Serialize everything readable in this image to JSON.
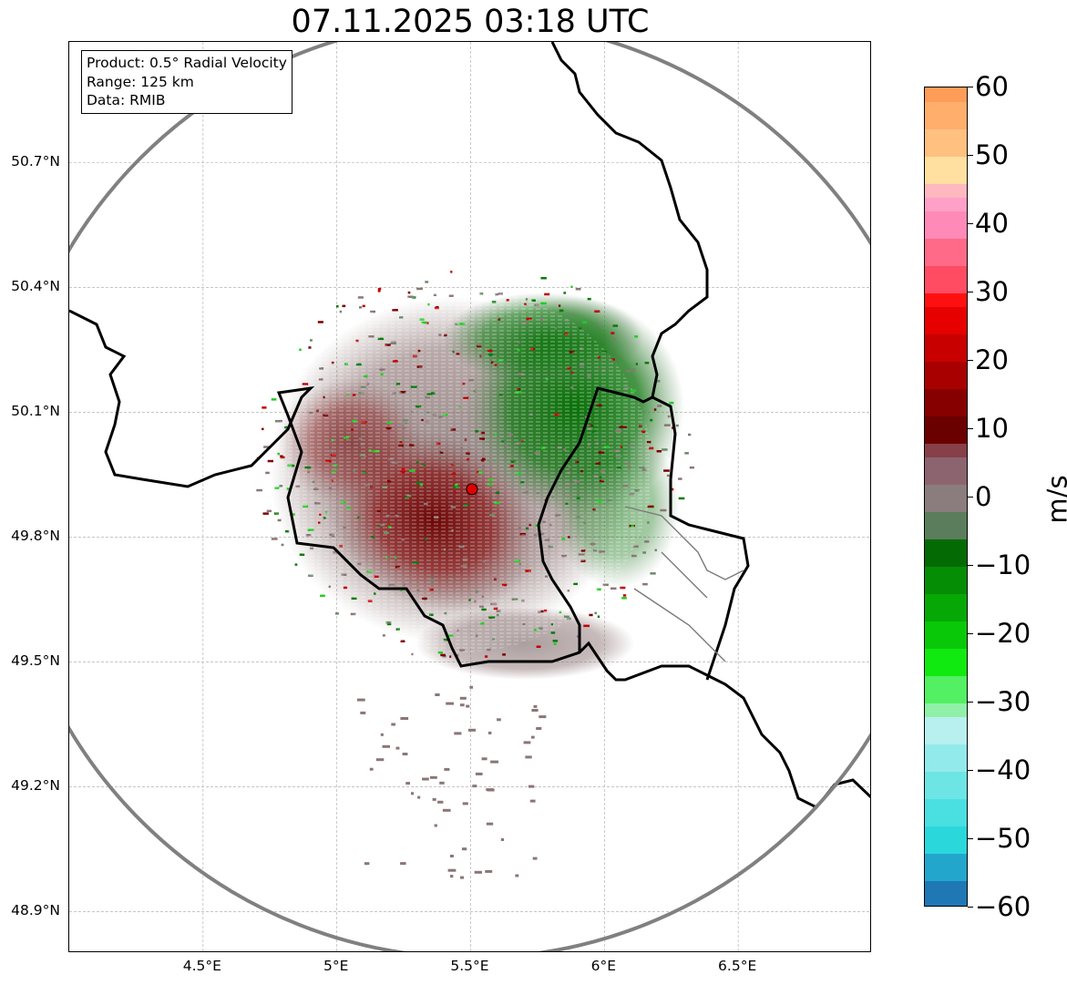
{
  "title": "07.11.2025 03:18 UTC",
  "info": {
    "product": "Product: 0.5° Radial Velocity",
    "range": "Range: 125 km",
    "data": "Data: RMIB"
  },
  "map": {
    "lon_range": [
      4.0,
      7.0
    ],
    "lat_range": [
      48.8,
      50.99
    ],
    "radar_site": {
      "lon": 5.505,
      "lat": 49.915
    },
    "range_ring_km": 125,
    "lat_ticks": [
      {
        "value": 50.7,
        "label": "50.7°N"
      },
      {
        "value": 50.4,
        "label": "50.4°N"
      },
      {
        "value": 50.1,
        "label": "50.1°N"
      },
      {
        "value": 49.8,
        "label": "49.8°N"
      },
      {
        "value": 49.5,
        "label": "49.5°N"
      },
      {
        "value": 49.2,
        "label": "49.2°N"
      },
      {
        "value": 48.9,
        "label": "48.9°N"
      }
    ],
    "lon_ticks": [
      {
        "value": 4.5,
        "label": "4.5°E"
      },
      {
        "value": 5.0,
        "label": "5°E"
      },
      {
        "value": 5.5,
        "label": "5.5°E"
      },
      {
        "value": 6.0,
        "label": "6°E"
      },
      {
        "value": 6.5,
        "label": "6.5°E"
      }
    ],
    "colors": {
      "border": "#000000",
      "range_ring": "#808080",
      "grid": "#b4b4b4",
      "radar_marker": "#e00000",
      "outbound_dark": "#7a0000",
      "inbound_green": "#0a7a0a",
      "near_zero": "#8a7676"
    }
  },
  "colorbar": {
    "unit": "m/s",
    "min": -60,
    "max": 60,
    "ticks": [
      {
        "value": 60,
        "label": "60"
      },
      {
        "value": 50,
        "label": "50"
      },
      {
        "value": 40,
        "label": "40"
      },
      {
        "value": 30,
        "label": "30"
      },
      {
        "value": 20,
        "label": "20"
      },
      {
        "value": 10,
        "label": "10"
      },
      {
        "value": 0,
        "label": "0"
      },
      {
        "value": -10,
        "label": "−10"
      },
      {
        "value": -20,
        "label": "−20"
      },
      {
        "value": -30,
        "label": "−30"
      },
      {
        "value": -40,
        "label": "−40"
      },
      {
        "value": -50,
        "label": "−50"
      },
      {
        "value": -60,
        "label": "−60"
      }
    ],
    "bands": [
      {
        "from": -60,
        "to": -56,
        "color": "#1f77b4"
      },
      {
        "from": -56,
        "to": -52,
        "color": "#23a6cc"
      },
      {
        "from": -52,
        "to": -48,
        "color": "#2ad8dc"
      },
      {
        "from": -48,
        "to": -44,
        "color": "#4adfe0"
      },
      {
        "from": -44,
        "to": -40,
        "color": "#6de5e5"
      },
      {
        "from": -40,
        "to": -36,
        "color": "#93eaea"
      },
      {
        "from": -36,
        "to": -32,
        "color": "#b8efef"
      },
      {
        "from": -32,
        "to": -30,
        "color": "#90f0a8"
      },
      {
        "from": -30,
        "to": -26,
        "color": "#52f062"
      },
      {
        "from": -26,
        "to": -22,
        "color": "#10ea10"
      },
      {
        "from": -22,
        "to": -18,
        "color": "#08c808"
      },
      {
        "from": -18,
        "to": -14,
        "color": "#06a806"
      },
      {
        "from": -14,
        "to": -10,
        "color": "#058d05"
      },
      {
        "from": -10,
        "to": -6,
        "color": "#046b04"
      },
      {
        "from": -6,
        "to": -2,
        "color": "#5b7d5b"
      },
      {
        "from": -2,
        "to": 2,
        "color": "#8b7d7d"
      },
      {
        "from": 2,
        "to": 6,
        "color": "#8c6470"
      },
      {
        "from": 6,
        "to": 8,
        "color": "#874048"
      },
      {
        "from": 8,
        "to": 12,
        "color": "#6b0000"
      },
      {
        "from": 12,
        "to": 16,
        "color": "#860000"
      },
      {
        "from": 16,
        "to": 20,
        "color": "#a80000"
      },
      {
        "from": 20,
        "to": 24,
        "color": "#c80000"
      },
      {
        "from": 24,
        "to": 28,
        "color": "#e60000"
      },
      {
        "from": 28,
        "to": 30,
        "color": "#ff1010"
      },
      {
        "from": 30,
        "to": 34,
        "color": "#ff4c62"
      },
      {
        "from": 34,
        "to": 38,
        "color": "#ff6a88"
      },
      {
        "from": 38,
        "to": 42,
        "color": "#ff8ab8"
      },
      {
        "from": 42,
        "to": 44,
        "color": "#ffa0c8"
      },
      {
        "from": 44,
        "to": 46,
        "color": "#ffb8c0"
      },
      {
        "from": 46,
        "to": 50,
        "color": "#ffe0a0"
      },
      {
        "from": 50,
        "to": 54,
        "color": "#ffc080"
      },
      {
        "from": 54,
        "to": 58,
        "color": "#ffae6c"
      },
      {
        "from": 58,
        "to": 60,
        "color": "#ff9c58"
      }
    ]
  }
}
